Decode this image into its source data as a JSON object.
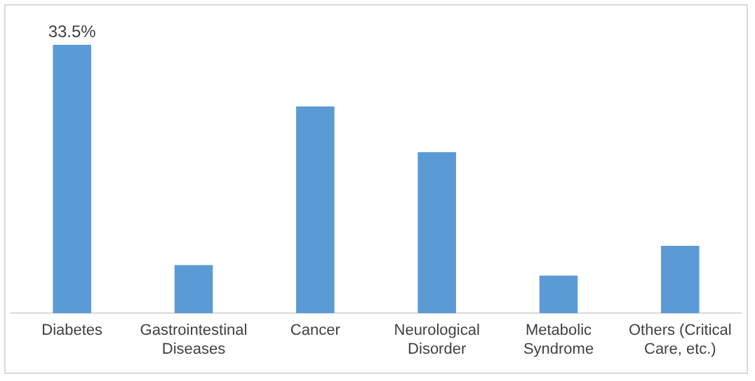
{
  "chart_data": {
    "type": "bar",
    "categories": [
      "Diabetes",
      "Gastrointestinal Diseases",
      "Cancer",
      "Neurological Disorder",
      "Metabolic Syndrome",
      "Others (Critical Care, etc.)"
    ],
    "values": [
      33.5,
      6,
      25.8,
      20.1,
      4.7,
      8.4
    ],
    "value_labels": [
      "33.5%",
      null,
      null,
      null,
      null,
      null
    ],
    "ylim": [
      0,
      33.5
    ],
    "tick_labels": "x",
    "color": "#5b9bd5",
    "grid": false,
    "legend": false
  }
}
